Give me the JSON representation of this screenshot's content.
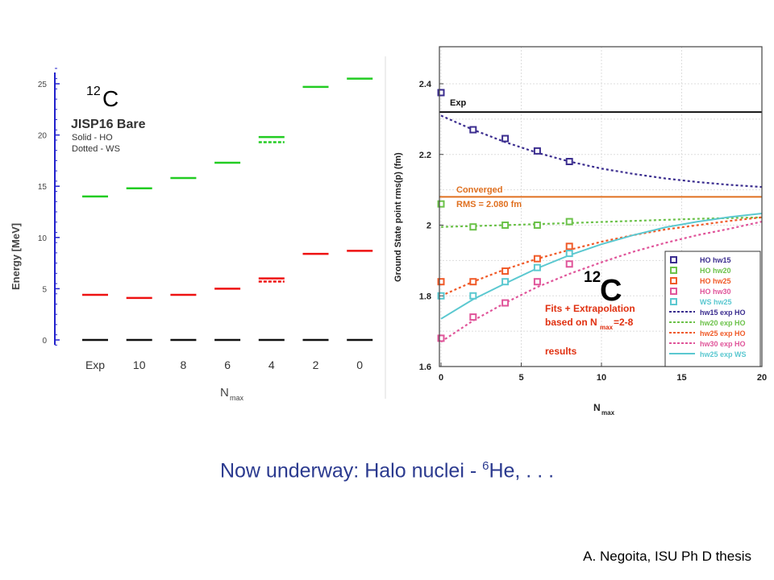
{
  "slide": {
    "subtitle_prefix": "Now underway:  Halo nuclei - ",
    "subtitle_sup": "6",
    "subtitle_suffix": "He, . . .",
    "credit": "A. Negoita, ISU Ph D thesis"
  },
  "chart_data": [
    {
      "type": "line",
      "nucleus_label": "C",
      "nucleus_mass": "12",
      "title": "JISP16 Bare",
      "notes": [
        "Solid - HO",
        "Dotted - WS"
      ],
      "ylabel": "Energy [MeV]",
      "xlabel": "N",
      "xlabel_sub": "max",
      "categories": [
        "Exp",
        "10",
        "8",
        "6",
        "4",
        "2",
        "0"
      ],
      "ylim": [
        -1,
        27
      ],
      "yticks": [
        0,
        5,
        10,
        15,
        20,
        25
      ],
      "series": [
        {
          "values": [
            0,
            0,
            0,
            0,
            0,
            0,
            0
          ],
          "color": "#111111"
        },
        {
          "values": [
            4.4,
            4.1,
            4.4,
            5.0,
            6.0,
            8.4,
            8.7
          ],
          "color": "#ee1111"
        },
        {
          "values": [
            null,
            null,
            null,
            null,
            5.7,
            null,
            null
          ],
          "color": "#ee1111",
          "dotted": true
        },
        {
          "values": [
            14.0,
            14.8,
            15.8,
            17.3,
            19.8,
            24.7,
            25.5
          ],
          "color": "#22cc22"
        },
        {
          "values": [
            null,
            null,
            null,
            null,
            19.3,
            null,
            null
          ],
          "color": "#22cc22",
          "dotted": true
        }
      ]
    },
    {
      "type": "line",
      "nucleus_label": "C",
      "nucleus_mass": "12",
      "ylabel": "Ground State point rms(p) (fm)",
      "xlabel": "N",
      "xlabel_sub": "max",
      "xlim": [
        0,
        20
      ],
      "ylim": [
        1.6,
        2.5
      ],
      "xticks": [
        0,
        5,
        10,
        15,
        20
      ],
      "yticks": [
        1.6,
        1.8,
        2,
        2.2,
        2.4
      ],
      "ytick_labels": [
        "1.6",
        "1.8",
        "2",
        "2.2",
        "2.4"
      ],
      "grid": true,
      "hlines": [
        {
          "y": 2.32,
          "label": "Exp",
          "color": "#111111"
        },
        {
          "y": 2.08,
          "label": "Converged",
          "label2": "RMS = 2.080 fm",
          "color": "#e07020"
        }
      ],
      "annotation_lines": [
        "Fits + Extrapolation",
        "based on N",
        "max",
        "=2-8",
        "results"
      ],
      "series": [
        {
          "name": "HO hw15",
          "color": "#3b2d8f",
          "x": [
            0,
            2,
            4,
            6,
            8
          ],
          "y": [
            2.375,
            2.27,
            2.245,
            2.21,
            2.18
          ]
        },
        {
          "name": "HO hw20",
          "color": "#6cc24a",
          "x": [
            0,
            2,
            4,
            6,
            8
          ],
          "y": [
            2.06,
            1.995,
            2.0,
            2.0,
            2.01
          ]
        },
        {
          "name": "HO hw25",
          "color": "#f05a28",
          "x": [
            0,
            2,
            4,
            6,
            8
          ],
          "y": [
            1.84,
            1.84,
            1.87,
            1.905,
            1.94
          ]
        },
        {
          "name": "HO hw30",
          "color": "#e0559a",
          "x": [
            0,
            2,
            4,
            6,
            8
          ],
          "y": [
            1.68,
            1.74,
            1.78,
            1.84,
            1.89
          ]
        },
        {
          "name": "WS hw25",
          "color": "#5bc8d0",
          "x": [
            0,
            2,
            4,
            6,
            8
          ],
          "y": [
            1.8,
            1.8,
            1.84,
            1.88,
            1.92
          ]
        }
      ],
      "fits": [
        {
          "name": "hw15 exp HO",
          "color": "#3b2d8f",
          "dash": true,
          "x": [
            0,
            2,
            4,
            6,
            8,
            10,
            12,
            14,
            16,
            18,
            20
          ],
          "y": [
            2.31,
            2.27,
            2.235,
            2.205,
            2.18,
            2.16,
            2.145,
            2.132,
            2.122,
            2.114,
            2.108
          ]
        },
        {
          "name": "hw20 exp HO",
          "color": "#6cc24a",
          "dash": true,
          "x": [
            0,
            4,
            8,
            12,
            16,
            20
          ],
          "y": [
            1.995,
            2.0,
            2.006,
            2.012,
            2.018,
            2.022
          ]
        },
        {
          "name": "hw25 exp HO",
          "color": "#f05a28",
          "dash": true,
          "x": [
            0,
            2,
            4,
            6,
            8,
            10,
            12,
            14,
            16,
            18,
            20
          ],
          "y": [
            1.8,
            1.84,
            1.875,
            1.905,
            1.93,
            1.953,
            1.972,
            1.988,
            2.0,
            2.012,
            2.022
          ]
        },
        {
          "name": "hw30 exp HO",
          "color": "#e0559a",
          "dash": true,
          "x": [
            0,
            2,
            4,
            6,
            8,
            10,
            12,
            14,
            16,
            18,
            20
          ],
          "y": [
            1.67,
            1.73,
            1.78,
            1.825,
            1.862,
            1.895,
            1.925,
            1.95,
            1.972,
            1.99,
            2.01
          ]
        },
        {
          "name": "hw25 exp WS",
          "color": "#5bc8d0",
          "dash": false,
          "x": [
            0,
            2,
            4,
            6,
            8,
            10,
            12,
            14,
            16,
            18,
            20
          ],
          "y": [
            1.735,
            1.79,
            1.835,
            1.878,
            1.915,
            1.946,
            1.972,
            1.994,
            2.01,
            2.023,
            2.033
          ]
        }
      ]
    }
  ]
}
